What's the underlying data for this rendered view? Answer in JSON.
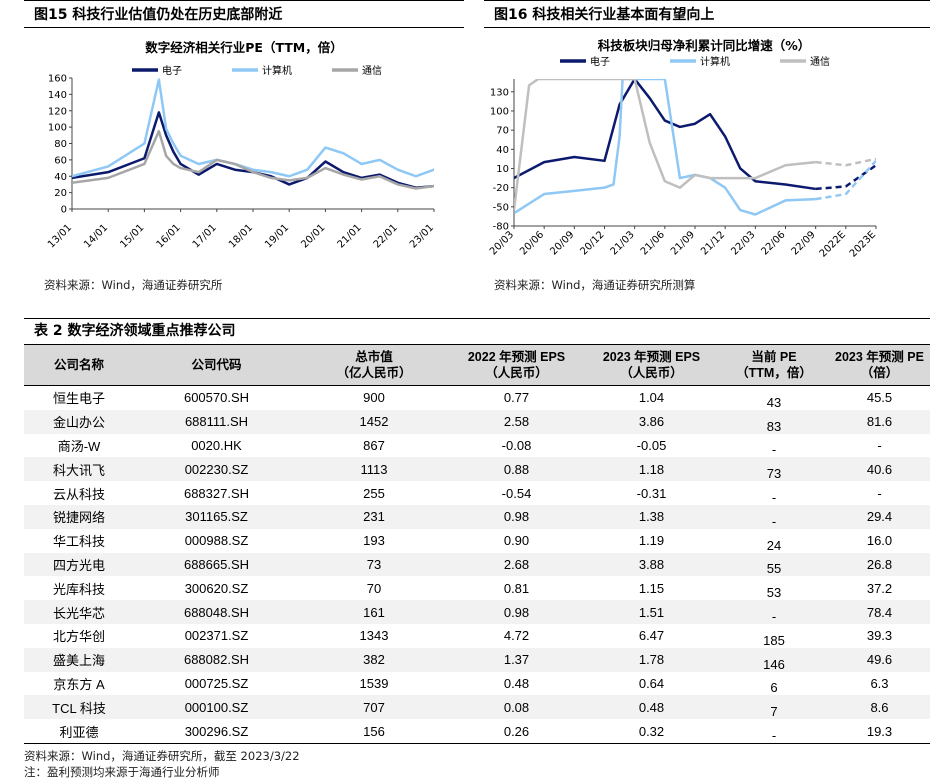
{
  "figure15": {
    "header": "图15 科技行业估值仍处在历史底部附近",
    "source": "资料来源：Wind，海通证券研究所"
  },
  "figure16": {
    "header": "图16 科技相关行业基本面有望向上",
    "source": "资料来源：Wind，海通证券研究所测算"
  },
  "chart_data": [
    {
      "type": "line",
      "title": "数字经济相关行业PE（TTM，倍）",
      "x_labels": [
        "13/01",
        "14/01",
        "15/01",
        "16/01",
        "17/01",
        "18/01",
        "19/01",
        "20/01",
        "21/01",
        "22/01",
        "23/01"
      ],
      "ylim": [
        0,
        160
      ],
      "yticks": [
        0,
        20,
        40,
        60,
        80,
        100,
        120,
        140,
        160
      ],
      "legend_position": "top",
      "colors": {
        "电子": "#0c1a6e",
        "计算机": "#8fc8f4",
        "通信": "#a6a6a6"
      },
      "series": [
        {
          "name": "电子",
          "x": [
            0,
            1,
            2,
            2.4,
            2.6,
            2.8,
            3,
            3.5,
            4,
            4.5,
            5,
            5.5,
            6,
            6.5,
            7,
            7.5,
            8,
            8.5,
            9,
            9.5,
            10,
            10.2
          ],
          "values": [
            38,
            45,
            62,
            118,
            90,
            70,
            55,
            42,
            55,
            48,
            45,
            40,
            30,
            38,
            58,
            45,
            38,
            42,
            32,
            26,
            28,
            32
          ]
        },
        {
          "name": "计算机",
          "x": [
            0,
            1,
            2,
            2.4,
            2.6,
            2.8,
            3,
            3.5,
            4,
            4.5,
            5,
            5.5,
            6,
            6.5,
            7,
            7.5,
            8,
            8.5,
            9,
            9.5,
            10,
            10.2
          ],
          "values": [
            40,
            52,
            80,
            158,
            98,
            80,
            65,
            55,
            60,
            55,
            48,
            45,
            40,
            48,
            75,
            68,
            55,
            60,
            48,
            40,
            48,
            58
          ]
        },
        {
          "name": "通信",
          "x": [
            0,
            1,
            2,
            2.4,
            2.6,
            2.8,
            3,
            3.5,
            4,
            4.5,
            5,
            5.5,
            6,
            6.5,
            7,
            7.5,
            8,
            8.5,
            9,
            9.5,
            10,
            10.2
          ],
          "values": [
            32,
            38,
            55,
            95,
            65,
            55,
            50,
            45,
            60,
            55,
            45,
            38,
            35,
            38,
            50,
            42,
            36,
            40,
            30,
            25,
            28,
            30
          ]
        }
      ]
    },
    {
      "type": "line",
      "title": "科技板块归母净利累计同比增速（%）",
      "x_labels": [
        "20/03",
        "20/06",
        "20/09",
        "20/12",
        "21/03",
        "21/06",
        "21/09",
        "21/12",
        "22/03",
        "22/06",
        "22/09",
        "2022E",
        "2023E"
      ],
      "ylim": [
        -80,
        150
      ],
      "yticks": [
        -80,
        -50,
        -20,
        10,
        40,
        70,
        100,
        130
      ],
      "legend_position": "top",
      "colors": {
        "电子": "#0c1a6e",
        "计算机": "#8fc8f4",
        "通信": "#bfbfbf"
      },
      "series": [
        {
          "name": "电子",
          "x": [
            0,
            1,
            2,
            3,
            3.5,
            4,
            4.5,
            5,
            5.5,
            6,
            6.5,
            7,
            7.5,
            8,
            9,
            10,
            11,
            12
          ],
          "values": [
            -5,
            20,
            28,
            22,
            110,
            150,
            120,
            85,
            75,
            80,
            95,
            60,
            10,
            -10,
            -15,
            -22,
            -18,
            15
          ]
        },
        {
          "name": "计算机",
          "x": [
            0,
            1,
            2,
            3,
            3.3,
            3.5,
            3.6,
            4,
            5,
            5.5,
            6,
            6.5,
            7,
            7.5,
            8,
            9,
            10,
            11,
            12
          ],
          "values": [
            -60,
            -30,
            -25,
            -20,
            -15,
            60,
            150,
            150,
            150,
            -5,
            0,
            -5,
            -20,
            -55,
            -62,
            -40,
            -38,
            -30,
            22
          ]
        },
        {
          "name": "通信",
          "x": [
            0,
            0.5,
            0.8,
            1,
            2,
            3,
            4,
            4.5,
            5,
            5.5,
            6,
            6.5,
            7,
            8,
            9,
            10,
            11,
            12
          ],
          "values": [
            -55,
            140,
            150,
            150,
            150,
            150,
            150,
            50,
            -10,
            -20,
            0,
            -5,
            -5,
            -5,
            15,
            20,
            15,
            25
          ]
        }
      ],
      "forecast_from_index": 10
    }
  ],
  "table": {
    "title": "表 2 数字经济领域重点推荐公司",
    "headers": [
      [
        "公司名称",
        ""
      ],
      [
        "公司代码",
        ""
      ],
      [
        "总市值",
        "（亿人民币）"
      ],
      [
        "2022 年预测 EPS",
        "（人民币）"
      ],
      [
        "2023 年预测 EPS",
        "（人民币）"
      ],
      [
        "当前 PE",
        "（TTM，倍）"
      ],
      [
        "2023 年预测 PE",
        "（倍）"
      ]
    ],
    "rows": [
      [
        "恒生电子",
        "600570.SH",
        "900",
        "0.77",
        "1.04",
        "43",
        "45.5"
      ],
      [
        "金山办公",
        "688111.SH",
        "1452",
        "2.58",
        "3.86",
        "83",
        "81.6"
      ],
      [
        "商汤-W",
        "0020.HK",
        "867",
        "-0.08",
        "-0.05",
        "-",
        "-"
      ],
      [
        "科大讯飞",
        "002230.SZ",
        "1113",
        "0.88",
        "1.18",
        "73",
        "40.6"
      ],
      [
        "云从科技",
        "688327.SH",
        "255",
        "-0.54",
        "-0.31",
        "-",
        "-"
      ],
      [
        "锐捷网络",
        "301165.SZ",
        "231",
        "0.98",
        "1.38",
        "-",
        "29.4"
      ],
      [
        "华工科技",
        "000988.SZ",
        "193",
        "0.90",
        "1.19",
        "24",
        "16.0"
      ],
      [
        "四方光电",
        "688665.SH",
        "73",
        "2.68",
        "3.88",
        "55",
        "26.8"
      ],
      [
        "光库科技",
        "300620.SZ",
        "70",
        "0.81",
        "1.15",
        "53",
        "37.2"
      ],
      [
        "长光华芯",
        "688048.SH",
        "161",
        "0.98",
        "1.51",
        "-",
        "78.4"
      ],
      [
        "北方华创",
        "002371.SZ",
        "1343",
        "4.72",
        "6.47",
        "185",
        "39.3"
      ],
      [
        "盛美上海",
        "688082.SH",
        "382",
        "1.37",
        "1.78",
        "146",
        "49.6"
      ],
      [
        "京东方 A",
        "000725.SZ",
        "1539",
        "0.48",
        "0.64",
        "6",
        "6.3"
      ],
      [
        "TCL 科技",
        "000100.SZ",
        "707",
        "0.08",
        "0.48",
        "7",
        "8.6"
      ],
      [
        "利亚德",
        "300296.SZ",
        "156",
        "0.26",
        "0.32",
        "-",
        "19.3"
      ]
    ],
    "note_source": "资料来源：Wind，海通证券研究所，截至 2023/3/22",
    "note_forecast": "注：盈利预测均来源于海通行业分析师"
  }
}
